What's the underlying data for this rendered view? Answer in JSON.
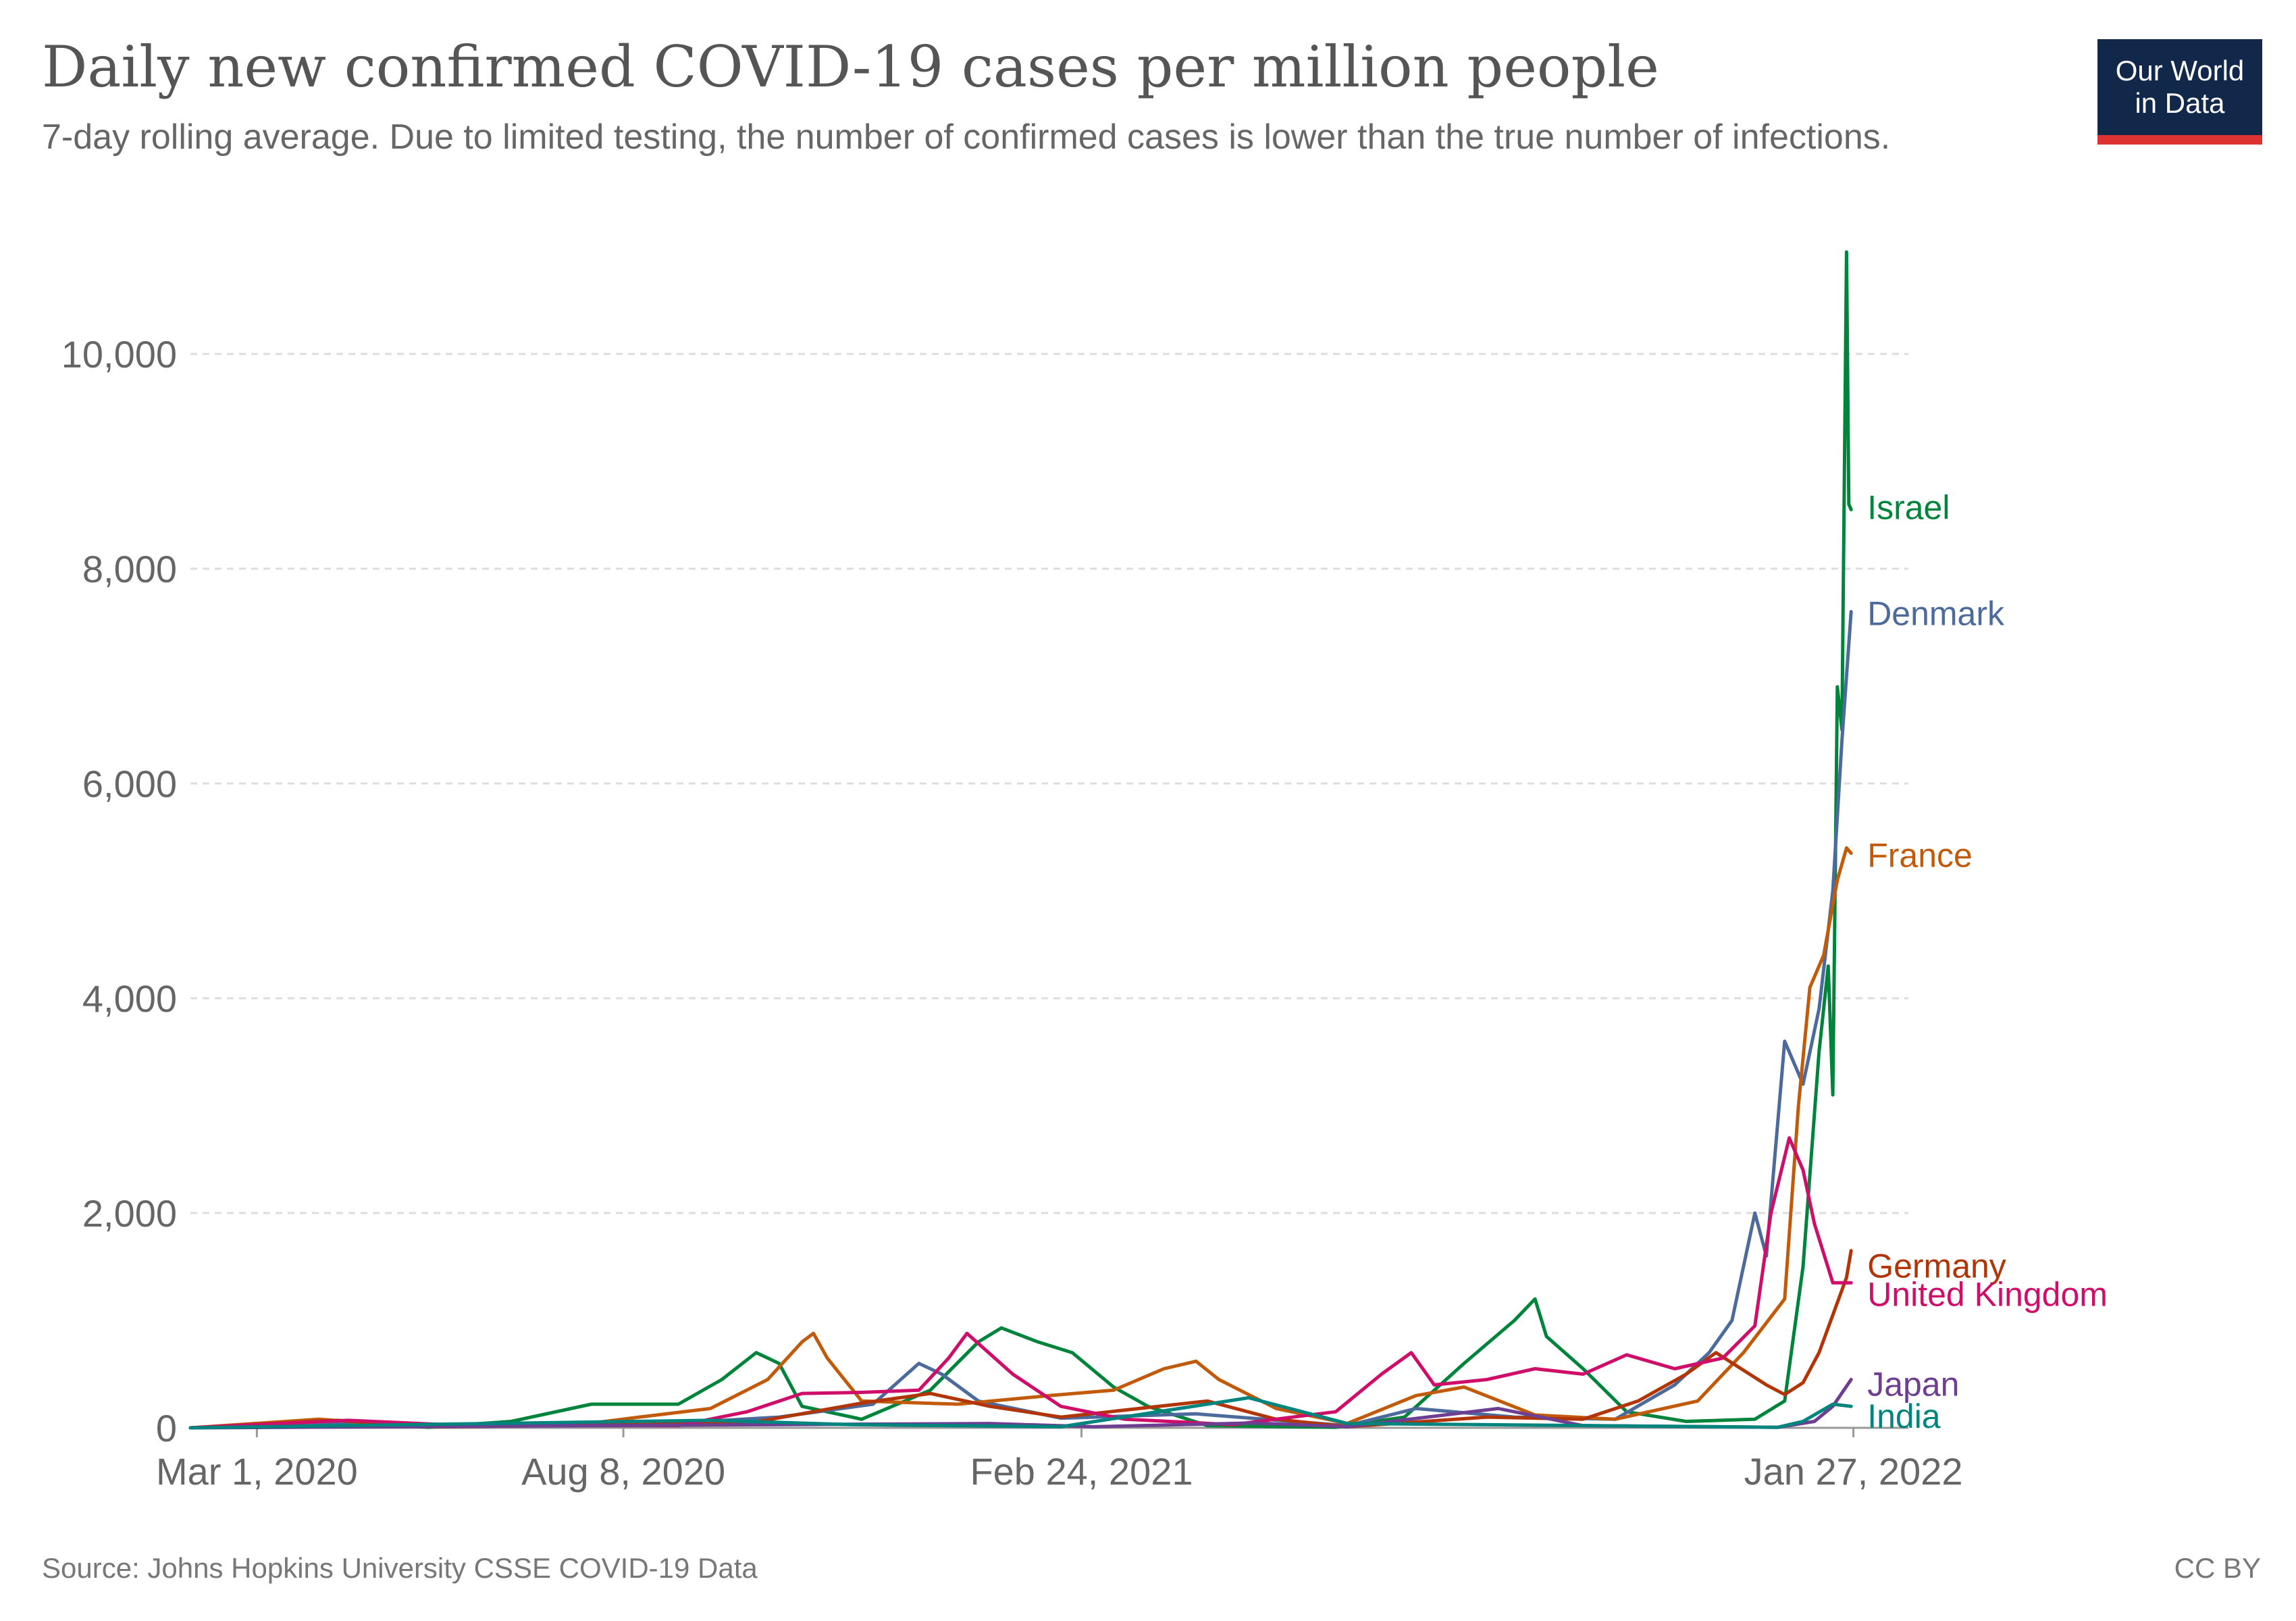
{
  "header": {
    "title": "Daily new confirmed COVID-19 cases per million people",
    "subtitle": "7-day rolling average. Due to limited testing, the number of confirmed cases is lower than the true number of infections.",
    "logo_line1": "Our World",
    "logo_line2": "in Data"
  },
  "footer": {
    "source": "Source: Johns Hopkins University CSSE COVID-19 Data",
    "license": "CC BY"
  },
  "chart_data": {
    "type": "line",
    "title": "Daily new confirmed COVID-19 cases per million people",
    "subtitle": "7-day rolling average. Due to limited testing, the number of confirmed cases is lower than the true number of infections.",
    "ylim": [
      0,
      10000
    ],
    "y_ticks": [
      0,
      2000,
      4000,
      6000,
      8000,
      10000
    ],
    "y_tick_labels": [
      "0",
      "2,000",
      "4,000",
      "6,000",
      "8,000",
      "10,000"
    ],
    "x_range": [
      "2020-02-01",
      "2022-02-20"
    ],
    "x_ticks": [
      "2020-03-01",
      "2020-08-08",
      "2021-02-24",
      "2022-01-27"
    ],
    "x_tick_labels": [
      "Mar 1, 2020",
      "Aug 8, 2020",
      "Feb 24, 2021",
      "Jan 27, 2022"
    ],
    "grid": "horizontal dashed",
    "legend": "line-end labels",
    "series": [
      {
        "name": "Israel",
        "color": "#00843c",
        "points": [
          [
            "2020-02-01",
            0
          ],
          [
            "2020-04-05",
            60
          ],
          [
            "2020-05-15",
            5
          ],
          [
            "2020-06-20",
            60
          ],
          [
            "2020-07-25",
            220
          ],
          [
            "2020-09-01",
            220
          ],
          [
            "2020-09-20",
            450
          ],
          [
            "2020-10-05",
            700
          ],
          [
            "2020-10-15",
            600
          ],
          [
            "2020-10-25",
            200
          ],
          [
            "2020-11-20",
            80
          ],
          [
            "2020-12-20",
            350
          ],
          [
            "2021-01-10",
            800
          ],
          [
            "2021-01-20",
            930
          ],
          [
            "2021-02-05",
            800
          ],
          [
            "2021-02-20",
            700
          ],
          [
            "2021-03-10",
            380
          ],
          [
            "2021-03-25",
            200
          ],
          [
            "2021-04-20",
            20
          ],
          [
            "2021-06-15",
            5
          ],
          [
            "2021-07-15",
            100
          ],
          [
            "2021-08-10",
            600
          ],
          [
            "2021-09-01",
            1000
          ],
          [
            "2021-09-10",
            1200
          ],
          [
            "2021-09-15",
            850
          ],
          [
            "2021-10-01",
            550
          ],
          [
            "2021-10-20",
            150
          ],
          [
            "2021-11-15",
            60
          ],
          [
            "2021-12-15",
            80
          ],
          [
            "2021-12-28",
            250
          ],
          [
            "2022-01-05",
            1500
          ],
          [
            "2022-01-12",
            3500
          ],
          [
            "2022-01-16",
            4300
          ],
          [
            "2022-01-18",
            3100
          ],
          [
            "2022-01-20",
            6900
          ],
          [
            "2022-01-22",
            6500
          ],
          [
            "2022-01-24",
            10950
          ],
          [
            "2022-01-25",
            8600
          ],
          [
            "2022-01-26",
            8550
          ]
        ]
      },
      {
        "name": "Denmark",
        "color": "#4c6a9c",
        "points": [
          [
            "2020-02-01",
            0
          ],
          [
            "2020-04-01",
            40
          ],
          [
            "2020-05-20",
            10
          ],
          [
            "2020-08-20",
            30
          ],
          [
            "2020-10-15",
            100
          ],
          [
            "2020-11-25",
            220
          ],
          [
            "2020-12-15",
            600
          ],
          [
            "2020-12-25",
            500
          ],
          [
            "2021-01-10",
            250
          ],
          [
            "2021-02-15",
            90
          ],
          [
            "2021-04-15",
            130
          ],
          [
            "2021-06-20",
            20
          ],
          [
            "2021-07-20",
            180
          ],
          [
            "2021-09-01",
            100
          ],
          [
            "2021-10-15",
            80
          ],
          [
            "2021-11-10",
            400
          ],
          [
            "2021-11-25",
            700
          ],
          [
            "2021-12-05",
            1000
          ],
          [
            "2021-12-15",
            2000
          ],
          [
            "2021-12-20",
            1600
          ],
          [
            "2021-12-28",
            3600
          ],
          [
            "2022-01-05",
            3200
          ],
          [
            "2022-01-12",
            3900
          ],
          [
            "2022-01-18",
            5000
          ],
          [
            "2022-01-22",
            6400
          ],
          [
            "2022-01-26",
            7600
          ]
        ]
      },
      {
        "name": "France",
        "color": "#c15b0b",
        "points": [
          [
            "2020-02-01",
            0
          ],
          [
            "2020-03-28",
            80
          ],
          [
            "2020-05-15",
            10
          ],
          [
            "2020-07-20",
            30
          ],
          [
            "2020-08-15",
            100
          ],
          [
            "2020-09-15",
            180
          ],
          [
            "2020-10-10",
            450
          ],
          [
            "2020-10-25",
            800
          ],
          [
            "2020-10-30",
            880
          ],
          [
            "2020-11-05",
            650
          ],
          [
            "2020-11-20",
            250
          ],
          [
            "2021-01-01",
            220
          ],
          [
            "2021-02-10",
            300
          ],
          [
            "2021-03-10",
            350
          ],
          [
            "2021-04-01",
            550
          ],
          [
            "2021-04-15",
            620
          ],
          [
            "2021-04-25",
            450
          ],
          [
            "2021-05-20",
            180
          ],
          [
            "2021-06-20",
            40
          ],
          [
            "2021-07-20",
            300
          ],
          [
            "2021-08-10",
            380
          ],
          [
            "2021-09-10",
            120
          ],
          [
            "2021-10-15",
            80
          ],
          [
            "2021-11-20",
            250
          ],
          [
            "2021-12-10",
            700
          ],
          [
            "2021-12-28",
            1200
          ],
          [
            "2022-01-03",
            3000
          ],
          [
            "2022-01-08",
            4100
          ],
          [
            "2022-01-14",
            4400
          ],
          [
            "2022-01-20",
            5100
          ],
          [
            "2022-01-24",
            5400
          ],
          [
            "2022-01-26",
            5350
          ]
        ]
      },
      {
        "name": "Germany",
        "color": "#b13507",
        "points": [
          [
            "2020-02-01",
            0
          ],
          [
            "2020-04-05",
            70
          ],
          [
            "2020-05-20",
            10
          ],
          [
            "2020-10-01",
            40
          ],
          [
            "2020-11-20",
            230
          ],
          [
            "2020-12-20",
            320
          ],
          [
            "2021-01-15",
            200
          ],
          [
            "2021-02-15",
            100
          ],
          [
            "2021-04-20",
            250
          ],
          [
            "2021-05-20",
            80
          ],
          [
            "2021-06-20",
            10
          ],
          [
            "2021-08-20",
            100
          ],
          [
            "2021-10-01",
            80
          ],
          [
            "2021-10-25",
            250
          ],
          [
            "2021-11-15",
            500
          ],
          [
            "2021-11-28",
            700
          ],
          [
            "2021-12-20",
            400
          ],
          [
            "2021-12-28",
            310
          ],
          [
            "2022-01-05",
            420
          ],
          [
            "2022-01-12",
            700
          ],
          [
            "2022-01-18",
            1050
          ],
          [
            "2022-01-24",
            1400
          ],
          [
            "2022-01-26",
            1650
          ]
        ]
      },
      {
        "name": "United Kingdom",
        "color": "#ce0e69",
        "points": [
          [
            "2020-02-01",
            0
          ],
          [
            "2020-04-10",
            70
          ],
          [
            "2020-06-01",
            20
          ],
          [
            "2020-09-01",
            20
          ],
          [
            "2020-10-01",
            150
          ],
          [
            "2020-10-25",
            320
          ],
          [
            "2020-11-20",
            330
          ],
          [
            "2020-12-15",
            350
          ],
          [
            "2020-12-28",
            650
          ],
          [
            "2021-01-05",
            880
          ],
          [
            "2021-01-25",
            500
          ],
          [
            "2021-02-15",
            200
          ],
          [
            "2021-03-15",
            80
          ],
          [
            "2021-05-01",
            30
          ],
          [
            "2021-06-15",
            150
          ],
          [
            "2021-07-05",
            500
          ],
          [
            "2021-07-18",
            700
          ],
          [
            "2021-07-28",
            400
          ],
          [
            "2021-08-20",
            450
          ],
          [
            "2021-09-10",
            550
          ],
          [
            "2021-10-01",
            500
          ],
          [
            "2021-10-20",
            680
          ],
          [
            "2021-11-10",
            550
          ],
          [
            "2021-12-01",
            650
          ],
          [
            "2021-12-15",
            950
          ],
          [
            "2021-12-22",
            2000
          ],
          [
            "2021-12-30",
            2700
          ],
          [
            "2022-01-05",
            2400
          ],
          [
            "2022-01-10",
            1900
          ],
          [
            "2022-01-18",
            1350
          ],
          [
            "2022-01-26",
            1350
          ]
        ]
      },
      {
        "name": "Japan",
        "color": "#6d3e91",
        "points": [
          [
            "2020-02-01",
            0
          ],
          [
            "2021-01-15",
            40
          ],
          [
            "2021-03-01",
            10
          ],
          [
            "2021-05-10",
            45
          ],
          [
            "2021-06-20",
            10
          ],
          [
            "2021-08-25",
            180
          ],
          [
            "2021-10-01",
            20
          ],
          [
            "2021-12-25",
            5
          ],
          [
            "2022-01-10",
            60
          ],
          [
            "2022-01-18",
            200
          ],
          [
            "2022-01-26",
            450
          ]
        ]
      },
      {
        "name": "India",
        "color": "#00847e",
        "points": [
          [
            "2020-02-01",
            0
          ],
          [
            "2020-09-15",
            70
          ],
          [
            "2020-11-15",
            30
          ],
          [
            "2021-02-15",
            10
          ],
          [
            "2021-05-08",
            280
          ],
          [
            "2021-06-20",
            40
          ],
          [
            "2021-12-25",
            5
          ],
          [
            "2022-01-05",
            60
          ],
          [
            "2022-01-18",
            220
          ],
          [
            "2022-01-26",
            200
          ]
        ]
      }
    ]
  }
}
